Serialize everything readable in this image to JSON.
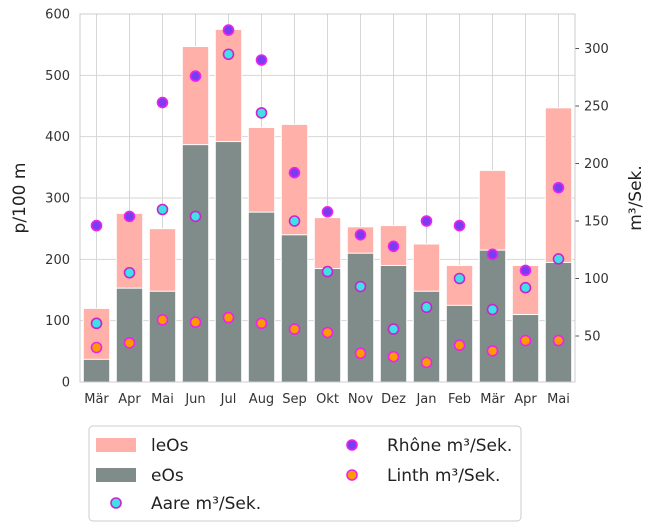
{
  "chart_data": {
    "type": "bar",
    "categories": [
      "Mär",
      "Apr",
      "Mai",
      "Jun",
      "Jul",
      "Aug",
      "Sep",
      "Okt",
      "Nov",
      "Dez",
      "Jan",
      "Feb",
      "Mär",
      "Apr",
      "Mai"
    ],
    "ylabel": "p/100 m",
    "y2label": "m³/Sek.",
    "ylim": [
      0,
      600
    ],
    "y2lim": [
      10,
      330
    ],
    "yticks": [
      0,
      100,
      200,
      300,
      400,
      500,
      600
    ],
    "y2ticks": [
      50,
      100,
      150,
      200,
      250,
      300
    ],
    "grid": true,
    "legend_position": "below",
    "series": [
      {
        "name": "leOs",
        "kind": "bar",
        "axis": "left",
        "color": "#ffb0a8",
        "values": [
          120,
          275,
          250,
          547,
          575,
          415,
          420,
          268,
          253,
          255,
          225,
          190,
          345,
          190,
          447
        ]
      },
      {
        "name": "eOs",
        "kind": "bar",
        "axis": "left",
        "color": "#7f8c8a",
        "values": [
          37,
          153,
          148,
          387,
          392,
          277,
          240,
          185,
          210,
          190,
          148,
          125,
          215,
          110,
          195
        ]
      },
      {
        "name": "Aare m³/Sek.",
        "kind": "scatter",
        "axis": "right",
        "fill": "#3fe0e8",
        "edge": "#cc22cc",
        "values": [
          61,
          105,
          160,
          154,
          295,
          244,
          150,
          106,
          93,
          56,
          75,
          100,
          73,
          92,
          117
        ]
      },
      {
        "name": "Rhône m³/Sek.",
        "kind": "scatter",
        "axis": "right",
        "fill": "#7a3cf0",
        "edge": "#ee22ee",
        "values": [
          146,
          154,
          253,
          276,
          316,
          290,
          192,
          158,
          138,
          128,
          150,
          146,
          121,
          107,
          179
        ]
      },
      {
        "name": "Linth m³/Sek.",
        "kind": "scatter",
        "axis": "right",
        "fill": "#ff9b00",
        "edge": "#ee22ee",
        "values": [
          40,
          44,
          64,
          62,
          66,
          61,
          56,
          53,
          35,
          32,
          27,
          42,
          37,
          46,
          46
        ]
      }
    ]
  }
}
